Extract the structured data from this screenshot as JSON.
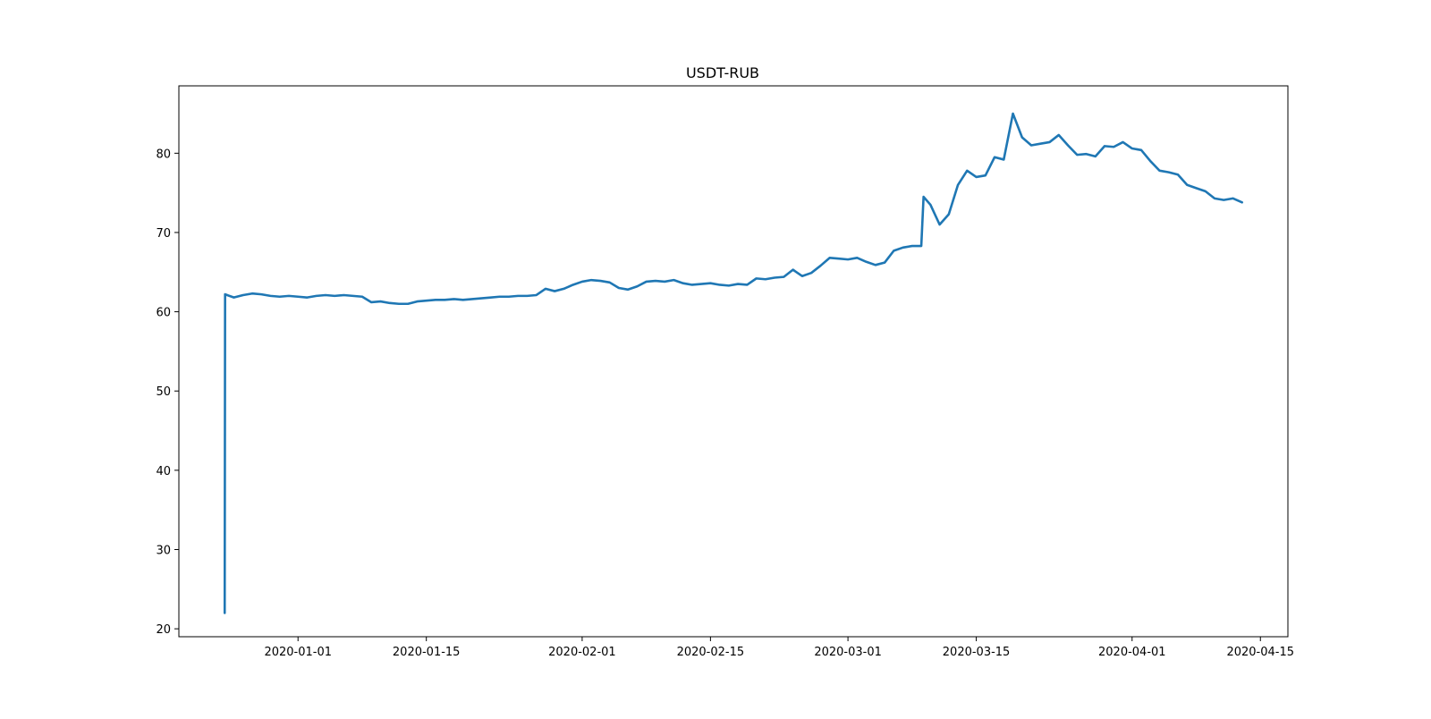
{
  "chart_data": {
    "type": "line",
    "title": "USDT-RUB",
    "xlabel": "",
    "ylabel": "",
    "grid": false,
    "xlim": [
      "2019-12-19",
      "2020-04-18"
    ],
    "ylim": [
      19,
      88.5
    ],
    "yticks": [
      20,
      30,
      40,
      50,
      60,
      70,
      80
    ],
    "xticks": [
      "2020-01-01",
      "2020-01-15",
      "2020-02-01",
      "2020-02-15",
      "2020-03-01",
      "2020-03-15",
      "2020-04-01",
      "2020-04-15"
    ],
    "series": [
      {
        "name": "USDT-RUB",
        "color": "#1f77b4",
        "points": [
          [
            "2019-12-24T00:00",
            22.0
          ],
          [
            "2019-12-24T01:00",
            62.2
          ],
          [
            "2019-12-25",
            61.8
          ],
          [
            "2019-12-26",
            62.1
          ],
          [
            "2019-12-27",
            62.3
          ],
          [
            "2019-12-28",
            62.2
          ],
          [
            "2019-12-29",
            62.0
          ],
          [
            "2019-12-30",
            61.9
          ],
          [
            "2019-12-31",
            62.0
          ],
          [
            "2020-01-01",
            61.9
          ],
          [
            "2020-01-02",
            61.8
          ],
          [
            "2020-01-03",
            62.0
          ],
          [
            "2020-01-04",
            62.1
          ],
          [
            "2020-01-05",
            62.0
          ],
          [
            "2020-01-06",
            62.1
          ],
          [
            "2020-01-07",
            62.0
          ],
          [
            "2020-01-08",
            61.9
          ],
          [
            "2020-01-09",
            61.2
          ],
          [
            "2020-01-10",
            61.3
          ],
          [
            "2020-01-11",
            61.1
          ],
          [
            "2020-01-12",
            61.0
          ],
          [
            "2020-01-13",
            61.0
          ],
          [
            "2020-01-14",
            61.3
          ],
          [
            "2020-01-15",
            61.4
          ],
          [
            "2020-01-16",
            61.5
          ],
          [
            "2020-01-17",
            61.5
          ],
          [
            "2020-01-18",
            61.6
          ],
          [
            "2020-01-19",
            61.5
          ],
          [
            "2020-01-20",
            61.6
          ],
          [
            "2020-01-21",
            61.7
          ],
          [
            "2020-01-22",
            61.8
          ],
          [
            "2020-01-23",
            61.9
          ],
          [
            "2020-01-24",
            61.9
          ],
          [
            "2020-01-25",
            62.0
          ],
          [
            "2020-01-26",
            62.0
          ],
          [
            "2020-01-27",
            62.1
          ],
          [
            "2020-01-28",
            62.9
          ],
          [
            "2020-01-29",
            62.6
          ],
          [
            "2020-01-30",
            62.9
          ],
          [
            "2020-01-31",
            63.4
          ],
          [
            "2020-02-01",
            63.8
          ],
          [
            "2020-02-02",
            64.0
          ],
          [
            "2020-02-03",
            63.9
          ],
          [
            "2020-02-04",
            63.7
          ],
          [
            "2020-02-05",
            63.0
          ],
          [
            "2020-02-06",
            62.8
          ],
          [
            "2020-02-07",
            63.2
          ],
          [
            "2020-02-08",
            63.8
          ],
          [
            "2020-02-09",
            63.9
          ],
          [
            "2020-02-10",
            63.8
          ],
          [
            "2020-02-11",
            64.0
          ],
          [
            "2020-02-12",
            63.6
          ],
          [
            "2020-02-13",
            63.4
          ],
          [
            "2020-02-14",
            63.5
          ],
          [
            "2020-02-15",
            63.6
          ],
          [
            "2020-02-16",
            63.4
          ],
          [
            "2020-02-17",
            63.3
          ],
          [
            "2020-02-18",
            63.5
          ],
          [
            "2020-02-19",
            63.4
          ],
          [
            "2020-02-20",
            64.2
          ],
          [
            "2020-02-21",
            64.1
          ],
          [
            "2020-02-22",
            64.3
          ],
          [
            "2020-02-23",
            64.4
          ],
          [
            "2020-02-24",
            65.3
          ],
          [
            "2020-02-25",
            64.5
          ],
          [
            "2020-02-26",
            64.9
          ],
          [
            "2020-02-27",
            65.8
          ],
          [
            "2020-02-28",
            66.8
          ],
          [
            "2020-02-29",
            66.7
          ],
          [
            "2020-03-01",
            66.6
          ],
          [
            "2020-03-02",
            66.8
          ],
          [
            "2020-03-03",
            66.3
          ],
          [
            "2020-03-04",
            65.9
          ],
          [
            "2020-03-05",
            66.2
          ],
          [
            "2020-03-06",
            67.7
          ],
          [
            "2020-03-07",
            68.1
          ],
          [
            "2020-03-08",
            68.3
          ],
          [
            "2020-03-09",
            68.3
          ],
          [
            "2020-03-09T06:00",
            74.5
          ],
          [
            "2020-03-10",
            73.5
          ],
          [
            "2020-03-11",
            71.0
          ],
          [
            "2020-03-12",
            72.3
          ],
          [
            "2020-03-13",
            76.0
          ],
          [
            "2020-03-14",
            77.8
          ],
          [
            "2020-03-15",
            77.0
          ],
          [
            "2020-03-16",
            77.2
          ],
          [
            "2020-03-17",
            79.5
          ],
          [
            "2020-03-18",
            79.2
          ],
          [
            "2020-03-19",
            85.0
          ],
          [
            "2020-03-20",
            82.0
          ],
          [
            "2020-03-21",
            81.0
          ],
          [
            "2020-03-22",
            81.2
          ],
          [
            "2020-03-23",
            81.4
          ],
          [
            "2020-03-24",
            82.3
          ],
          [
            "2020-03-25",
            81.0
          ],
          [
            "2020-03-26",
            79.8
          ],
          [
            "2020-03-27",
            79.9
          ],
          [
            "2020-03-28",
            79.6
          ],
          [
            "2020-03-29",
            80.9
          ],
          [
            "2020-03-30",
            80.8
          ],
          [
            "2020-03-31",
            81.4
          ],
          [
            "2020-04-01",
            80.6
          ],
          [
            "2020-04-02",
            80.4
          ],
          [
            "2020-04-03",
            79.0
          ],
          [
            "2020-04-04",
            77.8
          ],
          [
            "2020-04-05",
            77.6
          ],
          [
            "2020-04-06",
            77.3
          ],
          [
            "2020-04-07",
            76.0
          ],
          [
            "2020-04-08",
            75.6
          ],
          [
            "2020-04-09",
            75.2
          ],
          [
            "2020-04-10",
            74.3
          ],
          [
            "2020-04-11",
            74.1
          ],
          [
            "2020-04-12",
            74.3
          ],
          [
            "2020-04-13",
            73.8
          ]
        ]
      }
    ]
  }
}
